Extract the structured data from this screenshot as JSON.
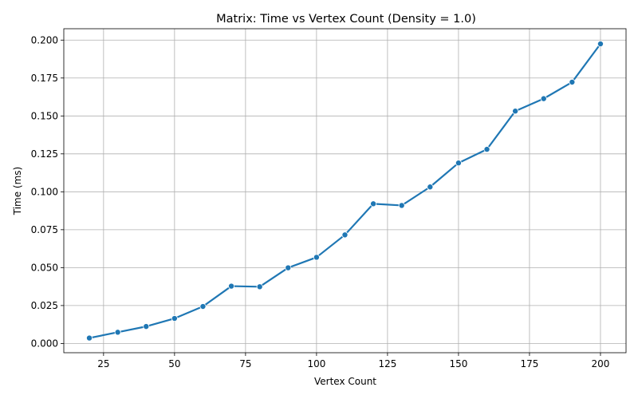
{
  "chart_data": {
    "type": "line",
    "title": "Matrix: Time vs Vertex Count (Density = 1.0)",
    "xlabel": "Vertex Count",
    "ylabel": "Time (ms)",
    "xlim": [
      11,
      209
    ],
    "ylim": [
      -0.0061,
      0.2075
    ],
    "xticks": [
      "25",
      "50",
      "75",
      "100",
      "125",
      "150",
      "175",
      "200"
    ],
    "yticks": [
      "0.000",
      "0.025",
      "0.050",
      "0.075",
      "0.100",
      "0.125",
      "0.150",
      "0.175",
      "0.200"
    ],
    "grid": true,
    "series_color": "#1f77b4",
    "x": [
      20,
      30,
      40,
      50,
      60,
      70,
      80,
      90,
      100,
      110,
      120,
      130,
      140,
      150,
      160,
      170,
      180,
      190,
      200
    ],
    "series": [
      {
        "values": [
          0.0036,
          0.0074,
          0.0112,
          0.0165,
          0.0244,
          0.0378,
          0.0374,
          0.0499,
          0.0568,
          0.0716,
          0.0921,
          0.091,
          0.1032,
          0.119,
          0.128,
          0.1532,
          0.1614,
          0.1723,
          0.1975
        ]
      }
    ]
  }
}
